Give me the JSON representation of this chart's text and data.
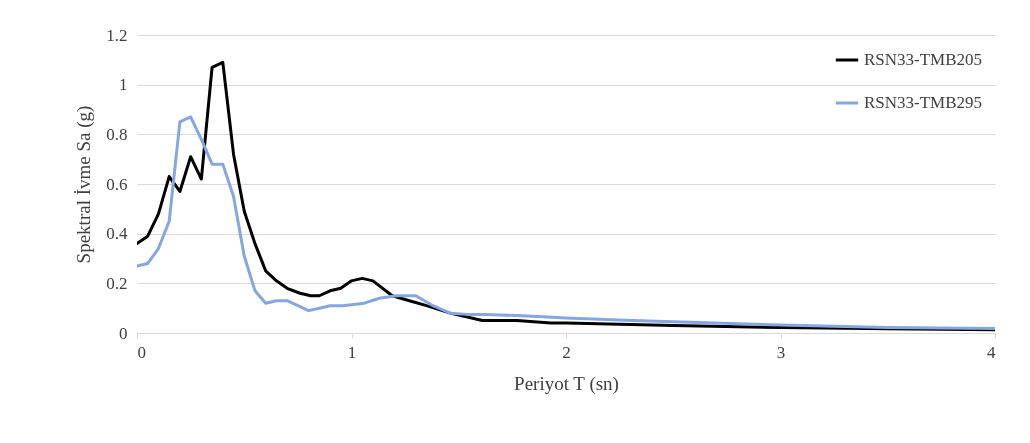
{
  "chart_data": {
    "type": "line",
    "xlabel": "Periyot T (sn)",
    "ylabel": "Spektral İvme Sa (g)",
    "xlim": [
      0,
      4
    ],
    "xticks": [
      0,
      1,
      2,
      3,
      4
    ],
    "ylim": [
      0,
      1.2
    ],
    "yticks": [
      0,
      0.2,
      0.4,
      0.6,
      0.8,
      1,
      1.2
    ],
    "grid": "y",
    "legend": "top right",
    "marker": "none",
    "line_style": "solid",
    "series": [
      {
        "name": "RSN33-TMB205",
        "color": "#000000",
        "x": [
          0,
          0.05,
          0.1,
          0.15,
          0.2,
          0.25,
          0.3,
          0.35,
          0.4,
          0.45,
          0.5,
          0.55,
          0.6,
          0.65,
          0.7,
          0.76,
          0.81,
          0.85,
          0.9,
          0.95,
          1.0,
          1.05,
          1.1,
          1.19,
          1.27,
          1.35,
          1.46,
          1.61,
          1.77,
          1.93,
          2.0,
          2.5,
          3.0,
          3.5,
          4.0
        ],
        "values": [
          0.36,
          0.39,
          0.48,
          0.63,
          0.57,
          0.71,
          0.62,
          1.07,
          1.09,
          0.72,
          0.49,
          0.36,
          0.25,
          0.21,
          0.18,
          0.16,
          0.15,
          0.15,
          0.17,
          0.18,
          0.21,
          0.22,
          0.21,
          0.15,
          0.13,
          0.11,
          0.08,
          0.05,
          0.05,
          0.04,
          0.04,
          0.03,
          0.022,
          0.017,
          0.013
        ]
      },
      {
        "name": "RSN33-TMB295",
        "color": "#86a6df",
        "x": [
          0,
          0.05,
          0.1,
          0.15,
          0.2,
          0.25,
          0.3,
          0.35,
          0.4,
          0.45,
          0.5,
          0.55,
          0.6,
          0.65,
          0.7,
          0.75,
          0.8,
          0.85,
          0.9,
          0.96,
          1.06,
          1.13,
          1.21,
          1.3,
          1.38,
          1.46,
          1.54,
          1.61,
          1.77,
          1.89,
          2.0,
          2.31,
          2.5,
          3.0,
          3.5,
          4.0
        ],
        "values": [
          0.27,
          0.28,
          0.34,
          0.45,
          0.85,
          0.87,
          0.78,
          0.68,
          0.68,
          0.55,
          0.31,
          0.17,
          0.12,
          0.13,
          0.13,
          0.11,
          0.09,
          0.1,
          0.11,
          0.11,
          0.12,
          0.14,
          0.15,
          0.15,
          0.11,
          0.08,
          0.075,
          0.075,
          0.07,
          0.065,
          0.06,
          0.05,
          0.045,
          0.032,
          0.022,
          0.018
        ]
      }
    ]
  }
}
